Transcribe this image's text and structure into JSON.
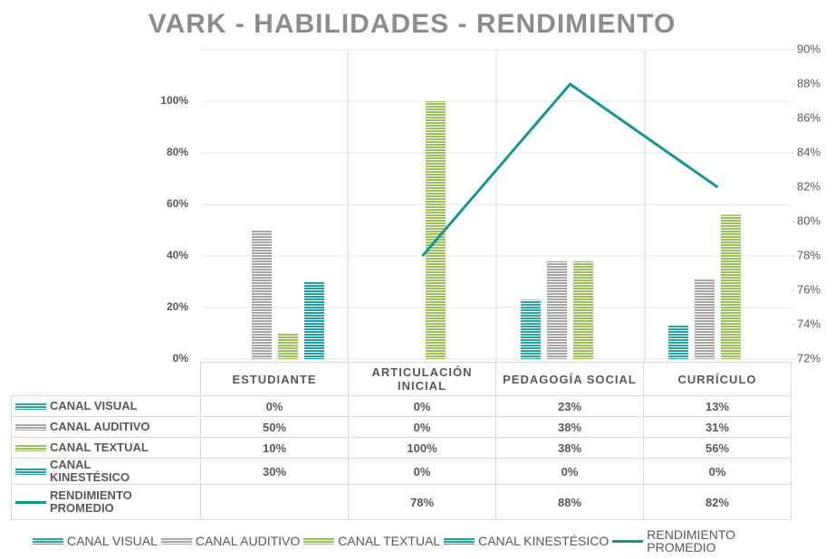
{
  "chart_data": {
    "type": "bar",
    "title": "VARK - HABILIDADES - RENDIMIENTO",
    "categories": [
      "ESTUDIANTE",
      "ARTICULACIÓN INICIAL",
      "PEDAGOGÍA SOCIAL",
      "CURRÍCULO"
    ],
    "series": [
      {
        "name": "CANAL VISUAL",
        "color": "#2aa5a5",
        "values": [
          0,
          0,
          23,
          13
        ],
        "value_labels": [
          "0%",
          "0%",
          "23%",
          "13%"
        ]
      },
      {
        "name": "CANAL AUDITIVO",
        "color": "#a6a6a6",
        "values": [
          50,
          0,
          38,
          31
        ],
        "value_labels": [
          "50%",
          "0%",
          "38%",
          "31%"
        ]
      },
      {
        "name": "CANAL TEXTUAL",
        "color": "#9bc25a",
        "values": [
          10,
          100,
          38,
          56
        ],
        "value_labels": [
          "10%",
          "100%",
          "38%",
          "56%"
        ]
      },
      {
        "name": "CANAL KINESTÉSICO",
        "color": "#1e9fa6",
        "values": [
          30,
          0,
          0,
          0
        ],
        "value_labels": [
          "30%",
          "0%",
          "0%",
          "0%"
        ]
      },
      {
        "name": "RENDIMIENTO PROMEDIO",
        "color": "#17968f",
        "type": "line",
        "axis": "y2",
        "values": [
          null,
          78,
          88,
          82
        ],
        "value_labels": [
          null,
          "78%",
          "88%",
          "82%"
        ]
      }
    ],
    "ylim": [
      0,
      120
    ],
    "yticks": [
      {
        "value": 0,
        "label": "0%"
      },
      {
        "value": 20,
        "label": "20%"
      },
      {
        "value": 40,
        "label": "40%"
      },
      {
        "value": 60,
        "label": "60%"
      },
      {
        "value": 80,
        "label": "80%"
      },
      {
        "value": 100,
        "label": "100%"
      }
    ],
    "y2lim": [
      72,
      90
    ],
    "y2ticks": [
      {
        "value": 72,
        "label": "72%"
      },
      {
        "value": 74,
        "label": "74%"
      },
      {
        "value": 76,
        "label": "76%"
      },
      {
        "value": 78,
        "label": "78%"
      },
      {
        "value": 80,
        "label": "80%"
      },
      {
        "value": 82,
        "label": "82%"
      },
      {
        "value": 84,
        "label": "84%"
      },
      {
        "value": 86,
        "label": "86%"
      },
      {
        "value": 88,
        "label": "88%"
      },
      {
        "value": 90,
        "label": "90%"
      }
    ],
    "grid": true,
    "legend": "bottom"
  }
}
